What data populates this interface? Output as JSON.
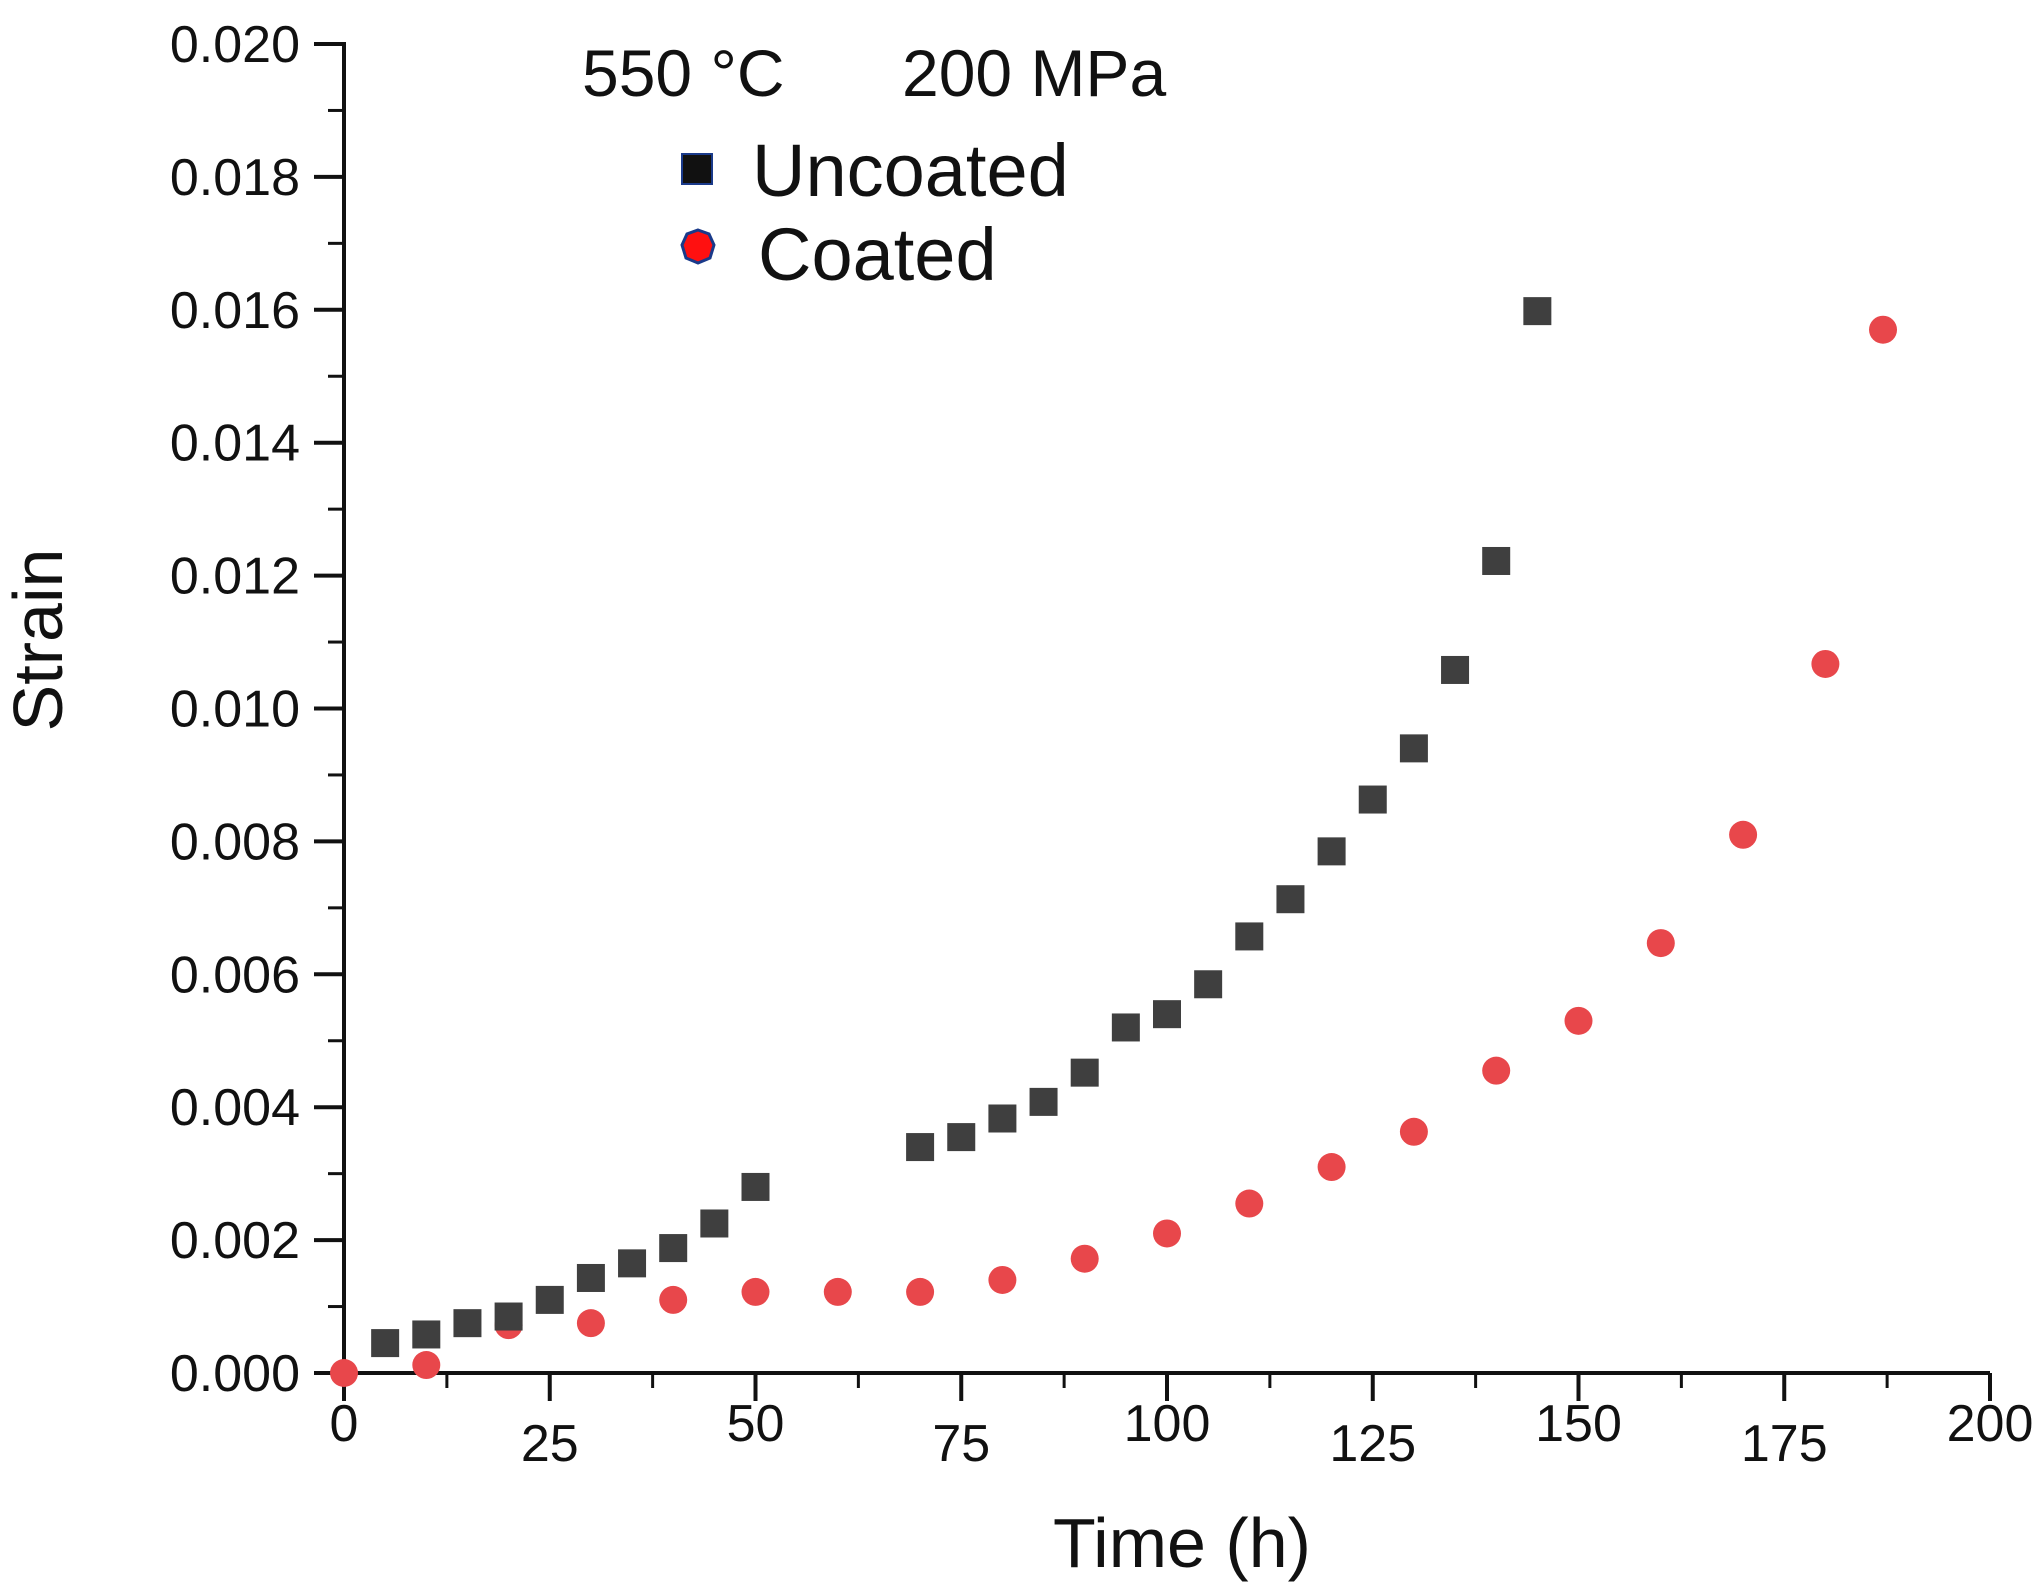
{
  "chart_data": {
    "type": "scatter",
    "title": "",
    "xlabel": "Time (h)",
    "ylabel": "Strain",
    "xlim": [
      0,
      200
    ],
    "ylim": [
      0,
      0.02
    ],
    "xticks": [
      0,
      25,
      50,
      75,
      100,
      125,
      150,
      175,
      200
    ],
    "xtick_labels": [
      "0",
      "25",
      "50",
      "75",
      "100",
      "125",
      "150",
      "175",
      "200"
    ],
    "yticks": [
      0,
      0.002,
      0.004,
      0.006,
      0.008,
      0.01,
      0.012,
      0.014,
      0.016,
      0.018,
      0.02
    ],
    "ytick_labels": [
      "0.000",
      "0.002",
      "0.004",
      "0.006",
      "0.008",
      "0.010",
      "0.012",
      "0.014",
      "0.016",
      "0.018",
      "0.020"
    ],
    "annotations": {
      "temperature": "550 °C",
      "stress": "200 MPa"
    },
    "legend_position": "top-left",
    "series": [
      {
        "name": "Uncoated",
        "marker": "square",
        "color": "#3f3f3f",
        "x": [
          5,
          10,
          15,
          20,
          25,
          30,
          35,
          40,
          45,
          50,
          70,
          75,
          80,
          85,
          90,
          95,
          100,
          105,
          110,
          115,
          120,
          125,
          130,
          135,
          140,
          145
        ],
        "y": [
          0.00045,
          0.00058,
          0.00075,
          0.00085,
          0.0011,
          0.00143,
          0.00165,
          0.00188,
          0.00225,
          0.0028,
          0.0034,
          0.00355,
          0.00383,
          0.00408,
          0.00452,
          0.0052,
          0.0054,
          0.00585,
          0.00657,
          0.00713,
          0.00785,
          0.00863,
          0.0094,
          0.01058,
          0.01222,
          0.01598
        ]
      },
      {
        "name": "Coated",
        "marker": "circle",
        "color": "#e8474b",
        "x": [
          0,
          10,
          20,
          30,
          40,
          50,
          60,
          70,
          80,
          90,
          100,
          110,
          120,
          130,
          140,
          150,
          160,
          170,
          180,
          187
        ],
        "y": [
          0.0,
          0.00012,
          0.00072,
          0.00075,
          0.0011,
          0.00122,
          0.00122,
          0.00122,
          0.0014,
          0.00172,
          0.0021,
          0.00255,
          0.0031,
          0.00363,
          0.00455,
          0.0053,
          0.00647,
          0.0081,
          0.01067,
          0.0157
        ]
      }
    ]
  }
}
